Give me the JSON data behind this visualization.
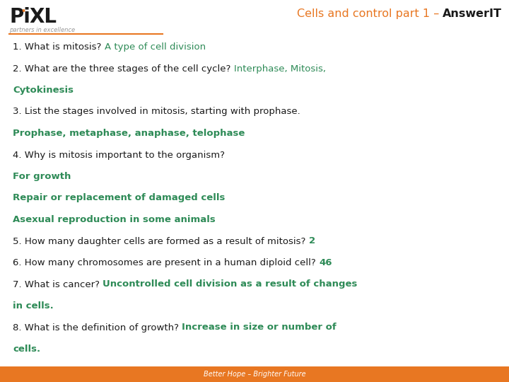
{
  "title_normal": "Cells and control part 1 – ",
  "title_bold": "AnswerIT",
  "title_color_normal": "#E87722",
  "title_color_bold": "#1A1A1A",
  "title_fontsize": 11.5,
  "bg_color": "#FFFFFF",
  "footer_color": "#E87722",
  "footer_text": "Better Hope – Brighter Future",
  "footer_fontsize": 7,
  "orange_line_color": "#E87722",
  "green_color": "#2E8B57",
  "black_color": "#1A1A1A",
  "pixl_Pi_color": "#1A1A1A",
  "pixl_i_dot_color": "#E87722",
  "logo_fontsize": 20,
  "logo_sub_fontsize": 6,
  "content_fontsize": 9.5,
  "lines": [
    {
      "parts": [
        {
          "text": "1. What is mitosis? ",
          "color": "#1A1A1A",
          "bold": false
        },
        {
          "text": "A type of cell division",
          "color": "#2E8B57",
          "bold": false
        }
      ]
    },
    {
      "parts": [
        {
          "text": "2. What are the three stages of the cell cycle? ",
          "color": "#1A1A1A",
          "bold": false
        },
        {
          "text": "Interphase, Mitosis,",
          "color": "#2E8B57",
          "bold": false
        }
      ]
    },
    {
      "parts": [
        {
          "text": "Cytokinesis",
          "color": "#2E8B57",
          "bold": true
        }
      ]
    },
    {
      "parts": [
        {
          "text": "3. List the stages involved in mitosis, starting with prophase.",
          "color": "#1A1A1A",
          "bold": false
        }
      ]
    },
    {
      "parts": [
        {
          "text": "Prophase, metaphase, anaphase, telophase",
          "color": "#2E8B57",
          "bold": true
        }
      ]
    },
    {
      "parts": [
        {
          "text": "4. Why is mitosis important to the organism?",
          "color": "#1A1A1A",
          "bold": false
        }
      ]
    },
    {
      "parts": [
        {
          "text": "For growth",
          "color": "#2E8B57",
          "bold": true
        }
      ]
    },
    {
      "parts": [
        {
          "text": "Repair or replacement of damaged cells",
          "color": "#2E8B57",
          "bold": true
        }
      ]
    },
    {
      "parts": [
        {
          "text": "Asexual reproduction in some animals",
          "color": "#2E8B57",
          "bold": true
        }
      ]
    },
    {
      "parts": [
        {
          "text": "5. How many daughter cells are formed as a result of mitosis? ",
          "color": "#1A1A1A",
          "bold": false
        },
        {
          "text": "2",
          "color": "#2E8B57",
          "bold": true
        }
      ]
    },
    {
      "parts": [
        {
          "text": "6. How many chromosomes are present in a human diploid cell? ",
          "color": "#1A1A1A",
          "bold": false
        },
        {
          "text": "46",
          "color": "#2E8B57",
          "bold": true
        }
      ]
    },
    {
      "parts": [
        {
          "text": "7. What is cancer? ",
          "color": "#1A1A1A",
          "bold": false
        },
        {
          "text": "Uncontrolled cell division as a result of changes",
          "color": "#2E8B57",
          "bold": true
        }
      ]
    },
    {
      "parts": [
        {
          "text": "in cells.",
          "color": "#2E8B57",
          "bold": true
        }
      ]
    },
    {
      "parts": [
        {
          "text": "8. What is the definition of growth? ",
          "color": "#1A1A1A",
          "bold": false
        },
        {
          "text": "Increase in size or number of",
          "color": "#2E8B57",
          "bold": true
        }
      ]
    },
    {
      "parts": [
        {
          "text": "cells.",
          "color": "#2E8B57",
          "bold": true
        }
      ]
    }
  ]
}
